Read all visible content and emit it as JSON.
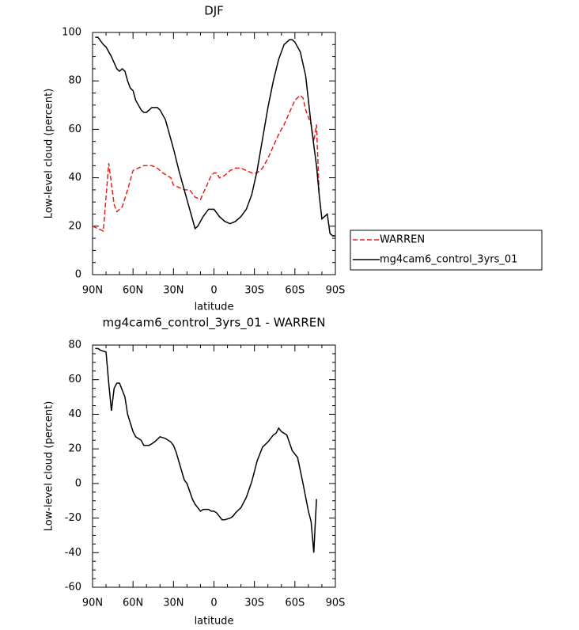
{
  "chart_data": [
    {
      "type": "line",
      "title": "DJF",
      "xlabel": "latitude",
      "ylabel": "Low-level cloud (percent)",
      "xlim": [
        90,
        -90
      ],
      "xticks": [
        {
          "value": 90,
          "label": "90N"
        },
        {
          "value": 60,
          "label": "60N"
        },
        {
          "value": 30,
          "label": "30N"
        },
        0,
        {
          "value": -30,
          "label": "30S"
        },
        {
          "value": -60,
          "label": "60S"
        },
        {
          "value": -90,
          "label": "90S"
        }
      ],
      "ylim": [
        0,
        100
      ],
      "yticks": [
        0,
        20,
        40,
        60,
        80,
        100
      ],
      "legend": "outside-right",
      "series": [
        {
          "name": "WARREN",
          "color": "#e8201c",
          "dash": true,
          "x": [
            90,
            86,
            82,
            78,
            74,
            72,
            68,
            64,
            60,
            56,
            52,
            46,
            42,
            38,
            32,
            30,
            26,
            22,
            18,
            14,
            10,
            6,
            2,
            0,
            -2,
            -4,
            -8,
            -12,
            -16,
            -20,
            -24,
            -28,
            -32,
            -36,
            -40,
            -44,
            -48,
            -52,
            -56,
            -60,
            -64,
            -66,
            -68,
            -72,
            -74,
            -76,
            -78
          ],
          "values": [
            20,
            19,
            18,
            46,
            29,
            26,
            28,
            35,
            43,
            44,
            45,
            45,
            44,
            42,
            40,
            37,
            36,
            35,
            35,
            32,
            31,
            36,
            41,
            42,
            42,
            40,
            41,
            43,
            44,
            44,
            43,
            42,
            42,
            44,
            48,
            53,
            58,
            62,
            67,
            72,
            74,
            73,
            68,
            62,
            55,
            62,
            33
          ]
        },
        {
          "name": "mg4cam6_control_3yrs_01",
          "color": "#000000",
          "dash": false,
          "x": [
            88,
            86,
            82,
            80,
            76,
            72,
            70,
            68,
            66,
            64,
            62,
            60,
            58,
            56,
            54,
            52,
            50,
            48,
            46,
            42,
            40,
            36,
            32,
            30,
            26,
            22,
            18,
            14,
            12,
            8,
            4,
            0,
            -4,
            -8,
            -12,
            -16,
            -20,
            -24,
            -28,
            -32,
            -36,
            -40,
            -44,
            -48,
            -52,
            -56,
            -58,
            -60,
            -64,
            -68,
            -72,
            -76,
            -78,
            -80,
            -82,
            -84,
            -86,
            -88,
            -90
          ],
          "values": [
            98,
            98,
            95,
            94,
            90,
            85,
            84,
            85,
            84,
            80,
            77,
            76,
            72,
            70,
            68,
            67,
            67,
            68,
            69,
            69,
            68,
            64,
            56,
            52,
            43,
            35,
            27,
            19,
            20,
            24,
            27,
            27,
            24,
            22,
            21,
            22,
            24,
            27,
            33,
            43,
            56,
            69,
            80,
            89,
            95,
            97,
            97,
            96,
            92,
            82,
            62,
            45,
            33,
            23,
            24,
            25,
            17,
            16,
            16
          ]
        }
      ]
    },
    {
      "type": "line",
      "title": "mg4cam6_control_3yrs_01 - WARREN",
      "xlabel": "latitude",
      "ylabel": "Low-level cloud (percent)",
      "xlim": [
        90,
        -90
      ],
      "xticks": [
        {
          "value": 90,
          "label": "90N"
        },
        {
          "value": 60,
          "label": "60N"
        },
        {
          "value": 30,
          "label": "30N"
        },
        0,
        {
          "value": -30,
          "label": "30S"
        },
        {
          "value": -60,
          "label": "60S"
        },
        {
          "value": -90,
          "label": "90S"
        }
      ],
      "ylim": [
        -60,
        80
      ],
      "yticks": [
        -60,
        -40,
        -20,
        0,
        20,
        40,
        60,
        80
      ],
      "series": [
        {
          "color": "#000000",
          "dash": false,
          "x": [
            88,
            86,
            84,
            80,
            78,
            76,
            74,
            72,
            70,
            66,
            64,
            60,
            58,
            54,
            52,
            50,
            48,
            44,
            40,
            36,
            32,
            30,
            28,
            22,
            20,
            16,
            14,
            10,
            8,
            4,
            2,
            0,
            -2,
            -4,
            -6,
            -8,
            -12,
            -14,
            -16,
            -20,
            -24,
            -28,
            -32,
            -36,
            -40,
            -44,
            -46,
            -48,
            -50,
            -54,
            -58,
            -62,
            -66,
            -70,
            -72,
            -74,
            -76
          ],
          "values": [
            78,
            78,
            77,
            76,
            58,
            42,
            55,
            58,
            58,
            50,
            40,
            30,
            27,
            25,
            22,
            22,
            22,
            24,
            27,
            26,
            24,
            22,
            18,
            2,
            0,
            -9,
            -12,
            -16,
            -15,
            -15,
            -16,
            -16,
            -17,
            -19,
            -21,
            -21,
            -20,
            -19,
            -17,
            -14,
            -8,
            1,
            13,
            21,
            24,
            28,
            29,
            32,
            30,
            28,
            19,
            15,
            0,
            -16,
            -22,
            -40,
            -9
          ]
        }
      ]
    }
  ]
}
